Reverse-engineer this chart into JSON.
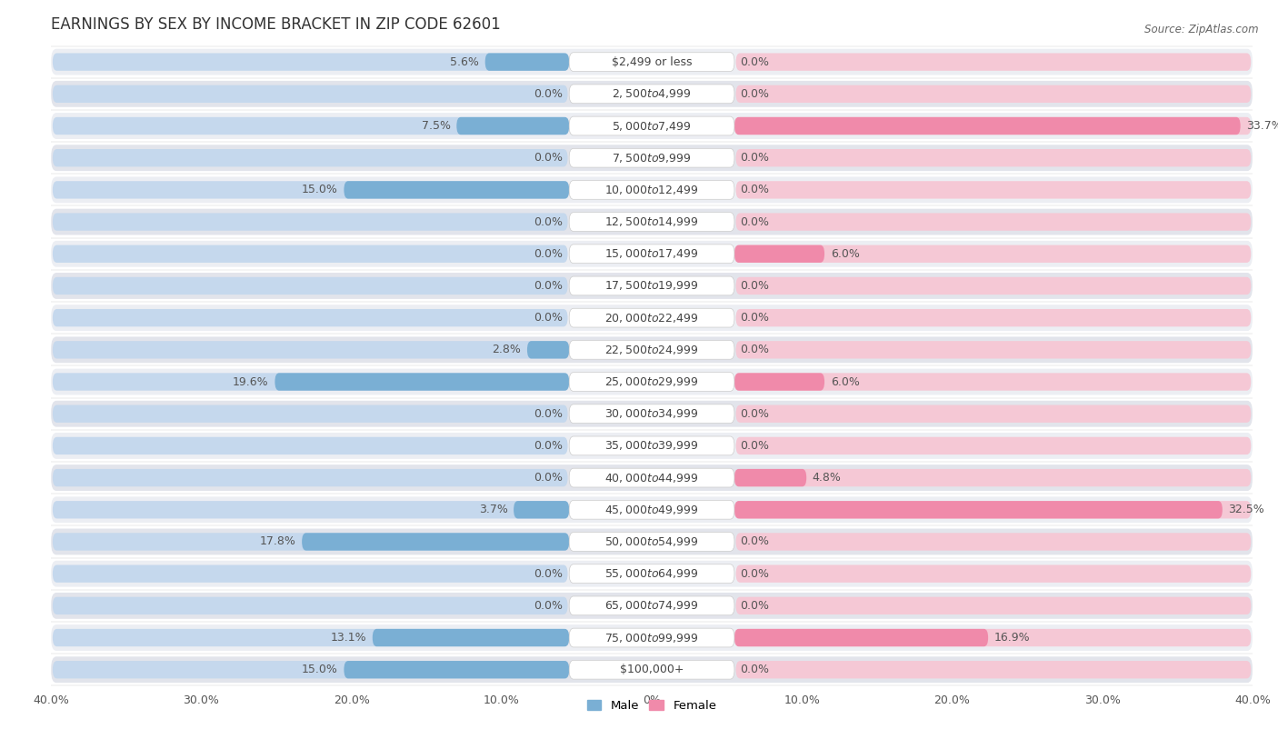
{
  "title": "EARNINGS BY SEX BY INCOME BRACKET IN ZIP CODE 62601",
  "source": "Source: ZipAtlas.com",
  "categories": [
    "$2,499 or less",
    "$2,500 to $4,999",
    "$5,000 to $7,499",
    "$7,500 to $9,999",
    "$10,000 to $12,499",
    "$12,500 to $14,999",
    "$15,000 to $17,499",
    "$17,500 to $19,999",
    "$20,000 to $22,499",
    "$22,500 to $24,999",
    "$25,000 to $29,999",
    "$30,000 to $34,999",
    "$35,000 to $39,999",
    "$40,000 to $44,999",
    "$45,000 to $49,999",
    "$50,000 to $54,999",
    "$55,000 to $64,999",
    "$65,000 to $74,999",
    "$75,000 to $99,999",
    "$100,000+"
  ],
  "male_values": [
    5.6,
    0.0,
    7.5,
    0.0,
    15.0,
    0.0,
    0.0,
    0.0,
    0.0,
    2.8,
    19.6,
    0.0,
    0.0,
    0.0,
    3.7,
    17.8,
    0.0,
    0.0,
    13.1,
    15.0
  ],
  "female_values": [
    0.0,
    0.0,
    33.7,
    0.0,
    0.0,
    0.0,
    6.0,
    0.0,
    0.0,
    0.0,
    6.0,
    0.0,
    0.0,
    4.8,
    32.5,
    0.0,
    0.0,
    0.0,
    16.9,
    0.0
  ],
  "male_color": "#7aafd4",
  "female_color": "#f08aaa",
  "male_label": "Male",
  "female_label": "Female",
  "xlim": 40.0,
  "row_bg_color": "#e8eaf0",
  "row_bg_color_alt": "#dfe1e8",
  "bar_bg_male_color": "#c5d8ed",
  "bar_bg_female_color": "#f5c8d5",
  "label_box_color": "#ffffff",
  "title_fontsize": 12,
  "label_fontsize": 9,
  "value_fontsize": 9,
  "axis_fontsize": 9,
  "tick_labels": [
    "40.0%",
    "30.0%",
    "20.0%",
    "10.0%",
    "0%",
    "10.0%",
    "20.0%",
    "30.0%",
    "40.0%"
  ],
  "tick_positions": [
    -40,
    -30,
    -20,
    -10,
    0,
    10,
    20,
    30,
    40
  ]
}
